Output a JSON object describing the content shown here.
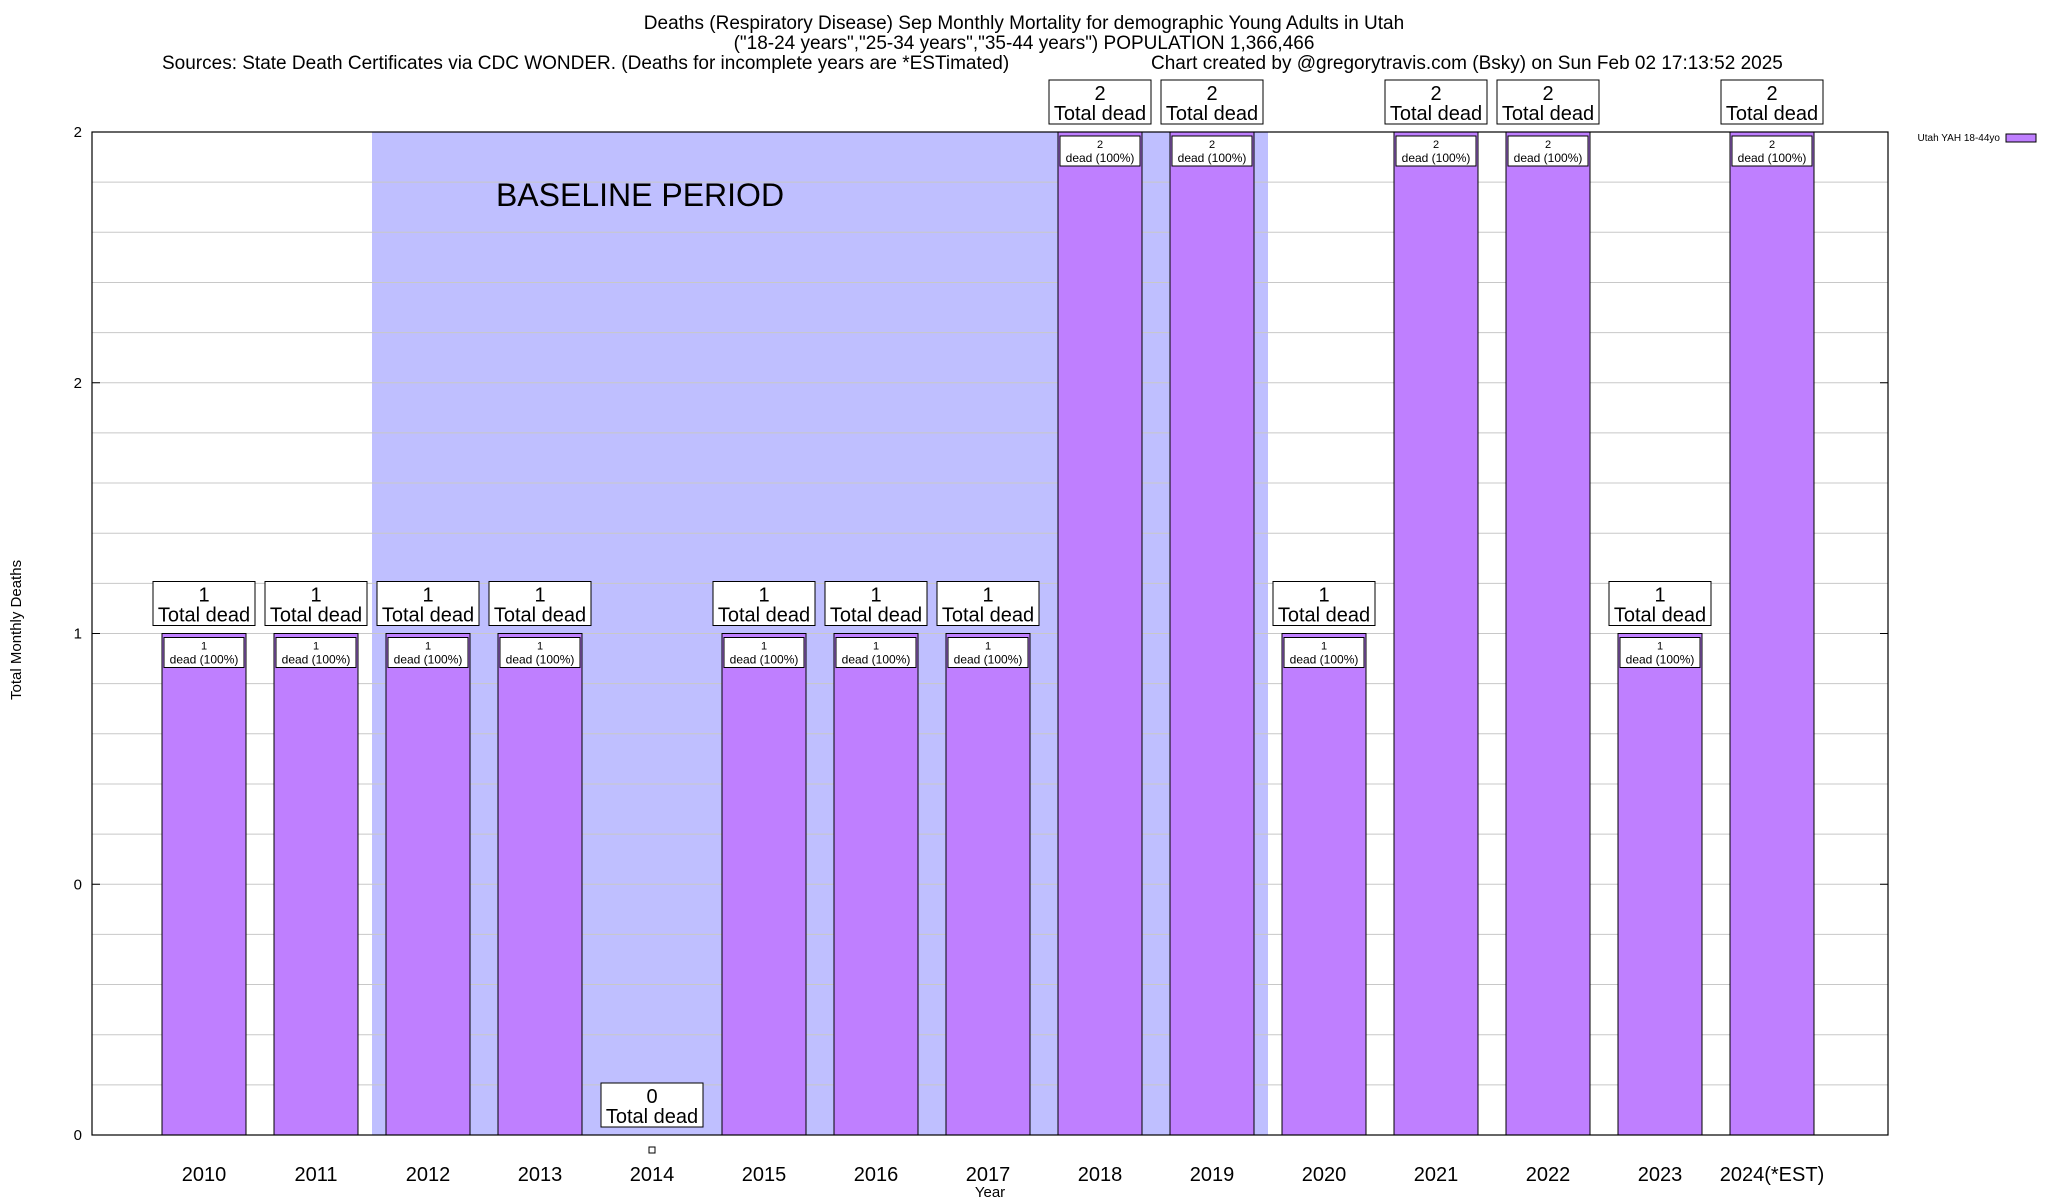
{
  "header": {
    "title": "Deaths (Respiratory Disease) Sep Monthly Mortality for demographic Young Adults in Utah",
    "subtitle": "(\"18-24 years\",\"25-34 years\",\"35-44 years\") POPULATION 1,366,466",
    "sources": "Sources: State Death Certificates via CDC WONDER. (Deaths for incomplete years are *ESTimated)",
    "credit": "Chart created by @gregorytravis.com (Bsky) on Sun Feb 02 17:13:52 2025"
  },
  "chart_data": {
    "type": "bar",
    "title": "Deaths (Respiratory Disease) Sep Monthly Mortality for demographic Young Adults in Utah",
    "xlabel": "Year",
    "ylabel": "Total Monthly Deaths",
    "categories": [
      "2010",
      "2011",
      "2012",
      "2013",
      "2014",
      "2015",
      "2016",
      "2017",
      "2018",
      "2019",
      "2020",
      "2021",
      "2022",
      "2023",
      "2024(*EST)"
    ],
    "series": [
      {
        "name": "Utah YAH 18-44yo",
        "color": "#bf7fff",
        "values": [
          1,
          1,
          1,
          1,
          0,
          1,
          1,
          1,
          2,
          2,
          1,
          2,
          2,
          1,
          2
        ]
      }
    ],
    "total_labels": [
      "Total dead",
      "Total dead",
      "Total dead",
      "Total dead",
      "Total dead",
      "Total dead",
      "Total dead",
      "Total dead",
      "Total dead",
      "Total dead",
      "Total dead",
      "Total dead",
      "Total dead",
      "Total dead",
      "Total dead"
    ],
    "inner_labels": [
      "dead (100%)",
      "dead (100%)",
      "dead (100%)",
      "dead (100%)",
      "",
      "dead (100%)",
      "dead (100%)",
      "dead (100%)",
      "dead (100%)",
      "dead (100%)",
      "dead (100%)",
      "dead (100%)",
      "dead (100%)",
      "dead (100%)",
      "dead (100%)"
    ],
    "ylim": [
      0,
      2
    ],
    "y_tick_labels": [
      "0",
      "0",
      "1",
      "2",
      "2"
    ],
    "baseline_period": {
      "label": "BASELINE PERIOD",
      "from": "2012",
      "to": "2019",
      "color": "#bfbfff"
    },
    "grid": true,
    "legend_position": "top-right"
  }
}
